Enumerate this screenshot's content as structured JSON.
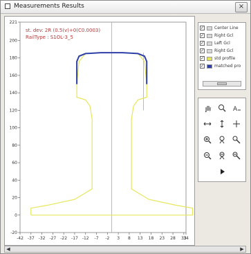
{
  "window": {
    "title": "Measurements Results",
    "close_label": "×"
  },
  "chart_data": {
    "type": "line",
    "annotation_lines": [
      "st. dev: 2R (0.5(v)+0(C0.0003)",
      "RailType : S1OL-3_5"
    ],
    "xlim": [
      -42,
      34
    ],
    "ylim": [
      -20,
      221
    ],
    "x_ticks": [
      -42,
      -37,
      -32,
      -27,
      -22,
      -17,
      -12,
      -7,
      -2,
      3,
      8,
      13,
      18,
      23,
      28,
      33,
      34
    ],
    "y_ticks": [
      -20,
      0,
      20,
      40,
      60,
      80,
      100,
      120,
      140,
      160,
      180,
      200,
      221
    ],
    "x_tick_labels": [
      "-42",
      "-37",
      "-32",
      "-27",
      "-22",
      "-17",
      "-12",
      "-7",
      "-2",
      "3",
      "8",
      "13",
      "18",
      "23",
      "28",
      "33",
      "34"
    ],
    "y_tick_labels": [
      "-20",
      "0",
      "20",
      "40",
      "60",
      "80",
      "100",
      "120",
      "140",
      "160",
      "180",
      "200",
      "221"
    ],
    "center_line_x": 0,
    "gauge_line_x": 14.5,
    "series": [
      {
        "name": "std profile",
        "color": "#e6e65a",
        "x": [
          -37,
          -37,
          -30,
          -17,
          -9,
          -9,
          -10,
          -12,
          -16,
          -16,
          -15,
          -12,
          -5,
          5,
          12,
          15,
          16,
          16,
          12,
          10,
          9,
          9,
          17,
          30,
          37,
          37,
          -37
        ],
        "y": [
          0,
          8,
          11,
          18,
          30,
          110,
          125,
          132,
          135,
          150,
          176,
          185,
          186,
          186,
          185,
          176,
          150,
          135,
          132,
          125,
          110,
          30,
          18,
          11,
          8,
          0,
          0
        ]
      },
      {
        "name": "matched profile",
        "color": "#2e3fa8",
        "x": [
          -16,
          -16,
          -15,
          -12,
          -5,
          5,
          12,
          15,
          16,
          16
        ],
        "y": [
          150,
          176,
          182,
          185,
          186,
          186,
          185,
          182,
          176,
          150
        ]
      }
    ]
  },
  "legend": {
    "items": [
      {
        "label": "Center Line",
        "checked": true,
        "swatch": "#d8d8d8"
      },
      {
        "label": "Right Gcl",
        "checked": true,
        "swatch": "#d8d8d8"
      },
      {
        "label": "Left Gcl",
        "checked": true,
        "swatch": "#d8d8d8"
      },
      {
        "label": "Right Gcl",
        "checked": true,
        "swatch": "#d8d8d8"
      },
      {
        "label": "std profile",
        "checked": true,
        "swatch": "#e6e65a"
      },
      {
        "label": "matched pro",
        "checked": true,
        "swatch": "#2e3fa8"
      }
    ]
  },
  "tools": [
    {
      "name": "pan-hand-icon"
    },
    {
      "name": "zoom-icon"
    },
    {
      "name": "text-tool-icon"
    },
    {
      "name": "horizontal-arrows-icon"
    },
    {
      "name": "vertical-arrows-icon"
    },
    {
      "name": "move-cross-icon"
    },
    {
      "name": "zoom-in-icon"
    },
    {
      "name": "zoom-in-vertical-icon"
    },
    {
      "name": "zoom-in-diagonal-icon"
    },
    {
      "name": "zoom-out-icon"
    },
    {
      "name": "zoom-out-vertical-icon"
    },
    {
      "name": "zoom-out-diagonal-icon"
    },
    {
      "name": "play-icon"
    }
  ]
}
